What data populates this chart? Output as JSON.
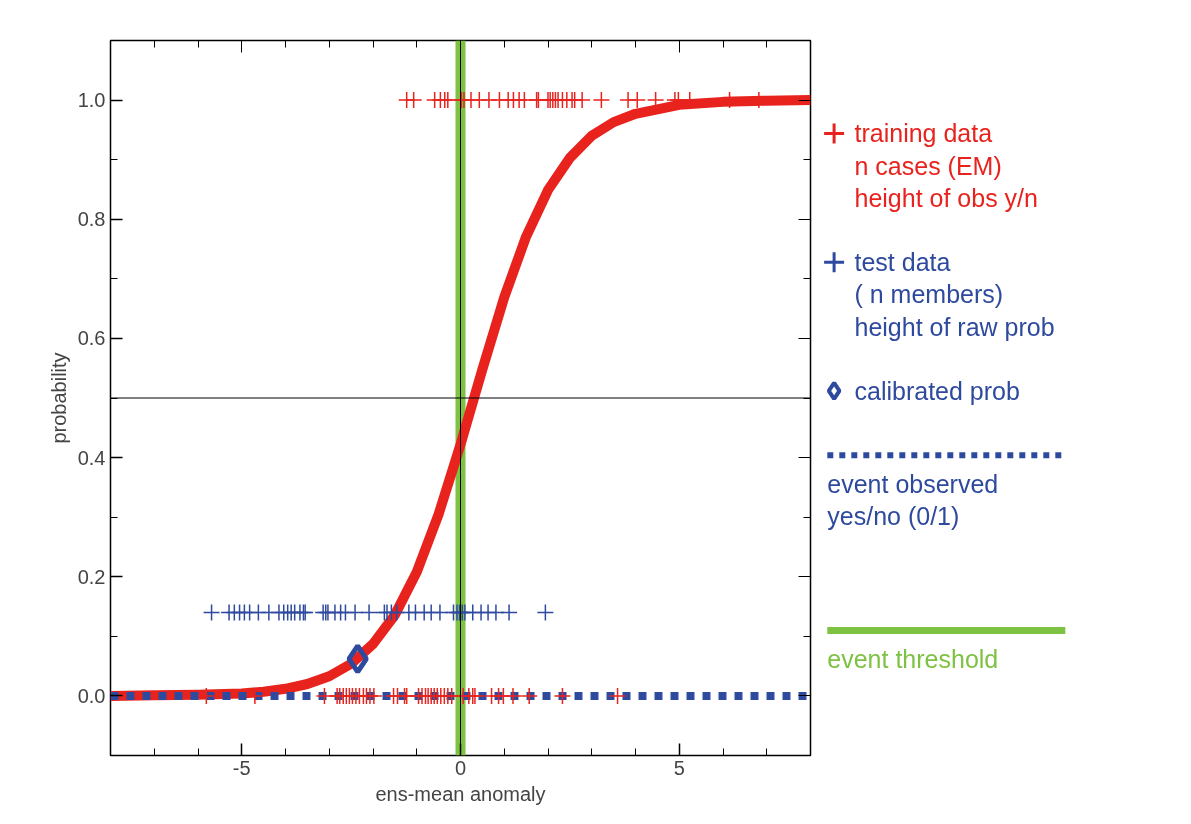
{
  "chart_data": {
    "type": "scatter",
    "xlabel": "ens-mean anomaly",
    "ylabel": "probability",
    "xlim": [
      -8,
      8
    ],
    "ylim": [
      -0.1,
      1.1
    ],
    "xticks": [
      -5,
      0,
      5
    ],
    "yticks": [
      {
        "value": 0,
        "label": "0.0"
      },
      0.2,
      0.4,
      0.6,
      0.8,
      {
        "value": 1,
        "label": "1.0"
      }
    ],
    "grid": false,
    "legend": "right",
    "series": [
      {
        "type": "line",
        "color": "#e8231e",
        "line_style": "solid",
        "x": [
          -8,
          -7,
          -6,
          -5,
          -4.5,
          -4,
          -3.5,
          -3,
          -2.5,
          -2,
          -1.5,
          -1,
          -0.5,
          0,
          0.5,
          1,
          1.5,
          2,
          2.5,
          3,
          3.5,
          4,
          5,
          6,
          7,
          8
        ],
        "values": [
          0,
          0.001,
          0.002,
          0.004,
          0.007,
          0.012,
          0.02,
          0.033,
          0.054,
          0.087,
          0.136,
          0.208,
          0.305,
          0.422,
          0.548,
          0.669,
          0.771,
          0.849,
          0.903,
          0.94,
          0.963,
          0.977,
          0.992,
          0.997,
          0.999,
          1.0
        ]
      },
      {
        "type": "line",
        "name": "event observed\nyes/no (0/1)",
        "color": "#2e4a9e",
        "line_style": "dotted",
        "x": [
          -8,
          8
        ],
        "values": [
          0,
          0
        ]
      },
      {
        "name": "training data\n    n cases (EM)\n height of obs y/n",
        "color": "#e8231e",
        "marker": "cross",
        "x": [
          -1.23,
          -1.07,
          -0.59,
          -0.46,
          -0.36,
          -0.29,
          0.02,
          0.08,
          0.24,
          0.43,
          0.65,
          0.89,
          1.09,
          1.21,
          1.34,
          1.46,
          1.74,
          1.78,
          2.0,
          2.05,
          2.11,
          2.17,
          2.23,
          2.33,
          2.43,
          2.55,
          2.61,
          2.78,
          3.22,
          3.83,
          4.04,
          4.46,
          4.9,
          4.98,
          5.24,
          6.15,
          6.82,
          -5.81,
          -4.7,
          -3.11,
          -2.82,
          -2.76,
          -2.68,
          -2.61,
          -2.54,
          -2.47,
          -2.39,
          -2.31,
          -2.22,
          -2.15,
          -2.07,
          -1.98,
          -1.53,
          -1.44,
          -1.28,
          -1.23,
          -0.96,
          -0.88,
          -0.8,
          -0.74,
          -0.67,
          -0.6,
          -0.53,
          -0.45,
          -0.37,
          -0.29,
          -0.2,
          0.06,
          0.19,
          0.28,
          0.33,
          0.71,
          0.87,
          0.98,
          1.2,
          1.57,
          2.33,
          3.59
        ],
        "values": [
          1,
          1,
          1,
          1,
          1,
          1,
          1,
          1,
          1,
          1,
          1,
          1,
          1,
          1,
          1,
          1,
          1,
          1,
          1,
          1,
          1,
          1,
          1,
          1,
          1,
          1,
          1,
          1,
          1,
          1,
          1,
          1,
          1,
          1,
          1,
          1,
          1,
          0,
          0,
          0,
          0,
          0,
          0,
          0,
          0,
          0,
          0,
          0,
          0,
          0,
          0,
          0,
          0,
          0,
          0,
          0,
          0,
          0,
          0,
          0,
          0,
          0,
          0,
          0,
          0,
          0,
          0,
          0,
          0,
          0,
          0,
          0,
          0,
          0,
          0,
          0,
          0,
          0
        ]
      },
      {
        "name": "test data\n(   n members)\nheight of raw prob",
        "color": "#2e4a9e",
        "marker": "cross",
        "x": [
          -5.69,
          -5.29,
          -5.17,
          -5.05,
          -4.94,
          -4.82,
          -4.62,
          -4.38,
          -4.15,
          -4.04,
          -3.95,
          -3.87,
          -3.79,
          -3.67,
          -3.59,
          -3.55,
          -3.14,
          -3.08,
          -3.03,
          -2.87,
          -2.74,
          -2.63,
          -2.41,
          -2.09,
          -1.74,
          -1.68,
          -1.58,
          -1.46,
          -1.18,
          -1.03,
          -0.83,
          -0.67,
          -0.47,
          -0.16,
          -0.08,
          -0.02,
          0.04,
          0.1,
          0.28,
          0.47,
          0.63,
          0.81,
          1.11,
          1.94
        ],
        "values": [
          0.14,
          0.14,
          0.14,
          0.14,
          0.14,
          0.14,
          0.14,
          0.14,
          0.14,
          0.14,
          0.14,
          0.14,
          0.14,
          0.14,
          0.14,
          0.14,
          0.14,
          0.14,
          0.14,
          0.14,
          0.14,
          0.14,
          0.14,
          0.14,
          0.14,
          0.14,
          0.14,
          0.14,
          0.14,
          0.14,
          0.14,
          0.14,
          0.14,
          0.14,
          0.14,
          0.14,
          0.14,
          0.14,
          0.14,
          0.14,
          0.14,
          0.14,
          0.14,
          0.14
        ]
      },
      {
        "name": "calibrated prob",
        "color": "#2e4a9e",
        "marker": "diamond",
        "x": [
          -2.35
        ],
        "values": [
          0.062
        ]
      }
    ],
    "ref_lines": [
      {
        "axis": "x",
        "value": 0,
        "label": "event threshold",
        "color": "#7dc242"
      },
      {
        "axis": "x",
        "value": 0,
        "color": "#000000"
      },
      {
        "axis": "y",
        "value": 0.5,
        "color": "#000000"
      }
    ]
  }
}
